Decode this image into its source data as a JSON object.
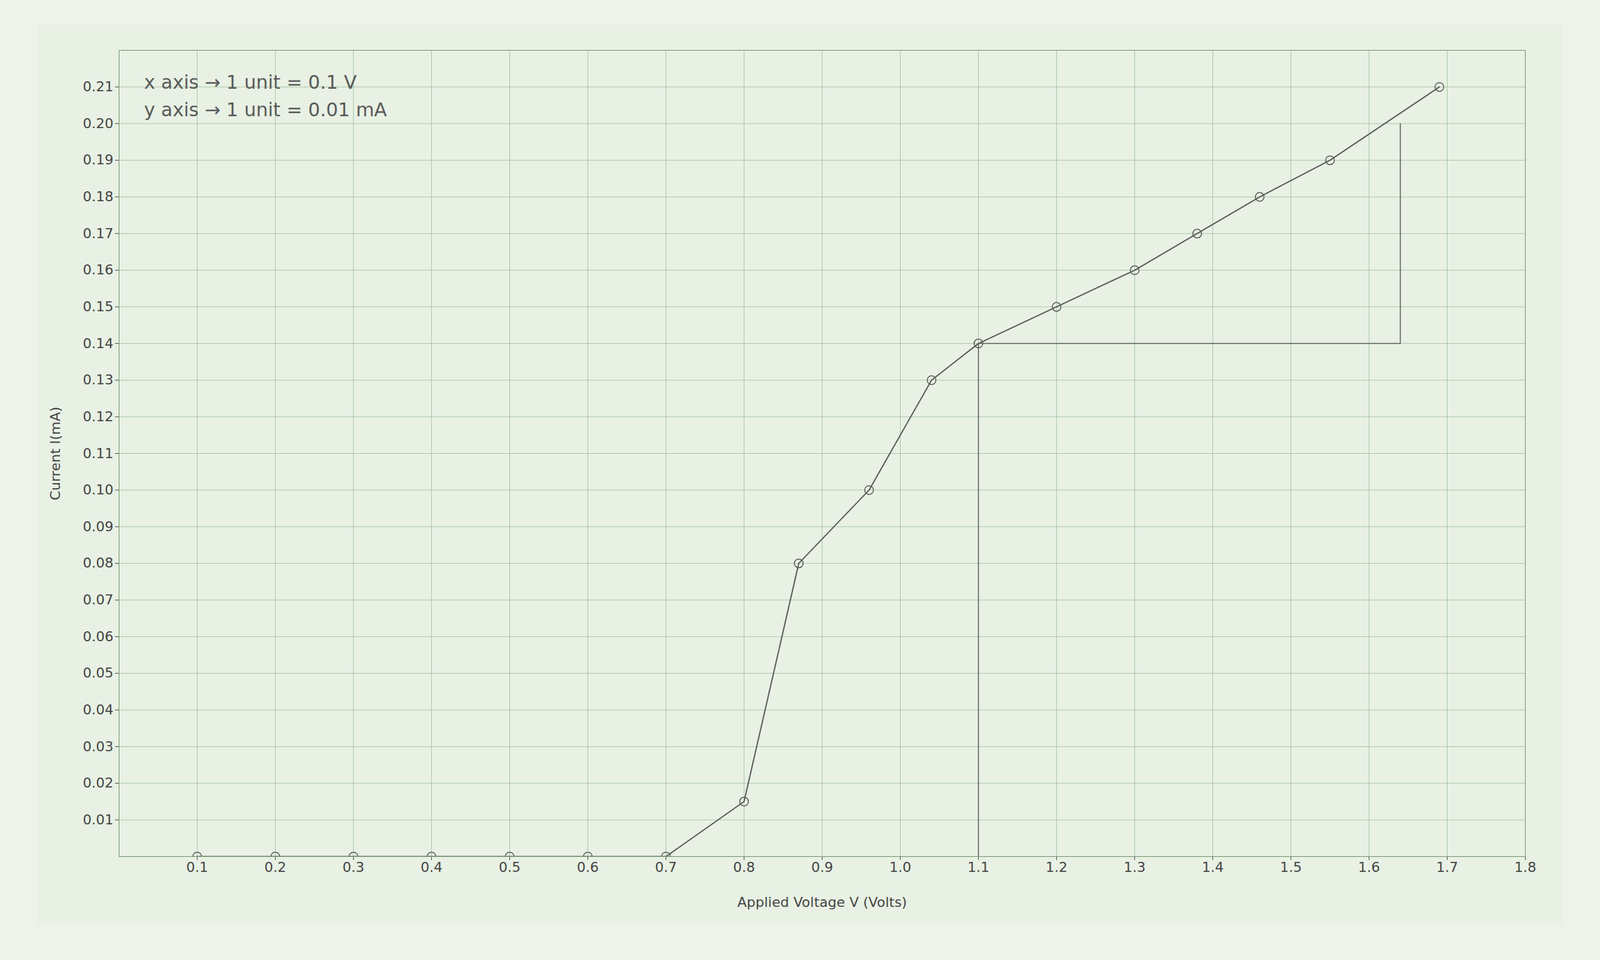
{
  "chart_data": {
    "type": "line",
    "x_label": "Applied Voltage V (Volts)",
    "y_label": "Current I(mA)",
    "annotations": [
      "x axis → 1 unit = 0.1 V",
      "y axis → 1 unit = 0.01 mA"
    ],
    "x": [
      0.1,
      0.2,
      0.3,
      0.4,
      0.5,
      0.6,
      0.7,
      0.8,
      0.87,
      0.96,
      1.04,
      1.1,
      1.2,
      1.3,
      1.38,
      1.46,
      1.55,
      1.69
    ],
    "values": [
      0,
      0,
      0,
      0,
      0,
      0,
      0,
      0.015,
      0.08,
      0.1,
      0.13,
      0.14,
      0.15,
      0.16,
      0.17,
      0.18,
      0.19,
      0.21
    ],
    "guide_lines": [
      {
        "x": [
          1.1,
          1.1
        ],
        "y": [
          0,
          0.14
        ]
      },
      {
        "x": [
          1.1,
          1.64
        ],
        "y": [
          0.14,
          0.14
        ]
      },
      {
        "x": [
          1.64,
          1.64
        ],
        "y": [
          0.14,
          0.2
        ]
      }
    ],
    "color": "#5a5a5a",
    "marker": "circle",
    "grid": true,
    "xlim": [
      0,
      1.8
    ],
    "xticks": [
      0.1,
      0.2,
      0.3,
      0.4,
      0.5,
      0.6,
      0.7,
      0.8,
      0.9,
      {
        "value": 1,
        "label": "1.0"
      },
      1.1,
      1.2,
      1.3,
      1.4,
      1.5,
      1.6,
      1.7,
      1.8
    ],
    "ylim": [
      0,
      0.22
    ],
    "yticks": [
      0.01,
      0.02,
      0.03,
      0.04,
      0.05,
      0.06,
      0.07,
      0.08,
      0.09,
      {
        "value": 0.1,
        "label": "0.10"
      },
      0.11,
      0.12,
      0.13,
      0.14,
      0.15,
      0.16,
      0.17,
      0.18,
      0.19,
      {
        "value": 0.2,
        "label": "0.20"
      },
      0.21
    ]
  }
}
